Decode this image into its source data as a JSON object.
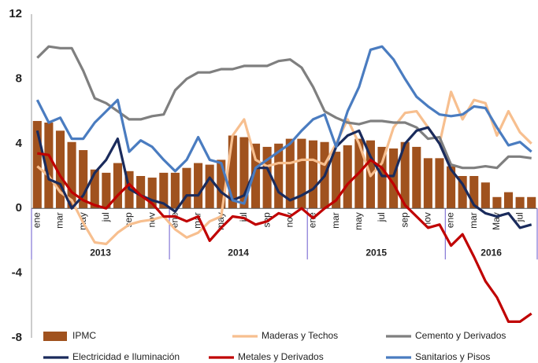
{
  "chart_data": {
    "type": "bar-line",
    "categories": [
      "ene",
      null,
      "mar",
      null,
      "may",
      null,
      "jul",
      null,
      "sep",
      null,
      "nov",
      null,
      "ene",
      null,
      "mar",
      null,
      "may",
      null,
      "jul",
      null,
      "sep",
      null,
      "nov",
      null,
      "ene",
      null,
      "mar",
      null,
      "may",
      null,
      "jul",
      null,
      "sep",
      null,
      "nov",
      null,
      "ene",
      null,
      "mar",
      null,
      "May",
      null,
      "jul",
      null
    ],
    "years": [
      "2013",
      "2014",
      "2015",
      "2016"
    ],
    "ylim": [
      -8,
      12
    ],
    "yticks": [
      -8,
      -4,
      0,
      4,
      8,
      12
    ],
    "series": [
      {
        "name": "IPMC",
        "kind": "bar",
        "color": "#a0521e",
        "values": [
          5.4,
          5.3,
          4.8,
          4.1,
          3.6,
          2.4,
          2.2,
          2.8,
          2.3,
          2.0,
          1.9,
          2.2,
          2.2,
          2.5,
          2.8,
          2.7,
          3.0,
          4.5,
          4.4,
          4.0,
          3.8,
          4.0,
          4.3,
          4.3,
          4.2,
          4.1,
          3.5,
          3.9,
          4.3,
          4.2,
          3.8,
          3.7,
          4.1,
          3.8,
          3.1,
          3.1,
          2.6,
          2.0,
          2.0,
          1.6,
          0.7,
          1.0,
          0.7,
          0.7
        ]
      },
      {
        "name": "Maderas y Techos",
        "kind": "line",
        "color": "#f7bf8f",
        "values": [
          2.6,
          2.0,
          1.0,
          0.5,
          -0.9,
          -2.1,
          -2.2,
          -1.5,
          -1.0,
          -0.8,
          -0.7,
          -0.5,
          -1.3,
          -1.8,
          -1.5,
          -0.8,
          -0.5,
          4.5,
          5.5,
          3.0,
          2.6,
          2.8,
          2.8,
          3.0,
          3.0,
          2.7,
          4.0,
          5.5,
          4.0,
          2.0,
          2.8,
          5.0,
          5.9,
          6.0,
          5.0,
          4.0,
          7.2,
          5.5,
          6.7,
          6.5,
          4.5,
          6.0,
          4.7,
          4.0
        ]
      },
      {
        "name": "Cemento y Derivados",
        "kind": "line",
        "color": "#7f7f7f",
        "values": [
          9.3,
          10.0,
          9.9,
          9.9,
          8.5,
          6.8,
          6.5,
          6.0,
          5.5,
          5.5,
          5.7,
          5.8,
          7.3,
          8.0,
          8.4,
          8.4,
          8.6,
          8.6,
          8.8,
          8.8,
          8.8,
          9.1,
          9.2,
          8.7,
          7.5,
          6.0,
          5.6,
          5.3,
          5.2,
          5.4,
          5.4,
          5.3,
          5.3,
          5.0,
          4.3,
          4.4,
          2.7,
          2.5,
          2.5,
          2.6,
          2.5,
          3.2,
          3.2,
          3.1
        ]
      },
      {
        "name": "Electricidad e Iluminación",
        "kind": "line",
        "color": "#1a2b5c",
        "values": [
          4.8,
          1.8,
          1.5,
          0.0,
          0.8,
          2.2,
          3.0,
          4.3,
          1.2,
          0.8,
          0.5,
          0.3,
          -0.2,
          0.8,
          0.8,
          1.9,
          1.0,
          0.5,
          0.8,
          2.5,
          2.5,
          1.0,
          0.5,
          0.8,
          1.2,
          2.0,
          3.8,
          4.5,
          4.8,
          3.2,
          2.0,
          2.0,
          4.0,
          4.8,
          5.0,
          4.0,
          2.4,
          1.5,
          0.2,
          -0.3,
          -0.5,
          -0.3,
          -1.2,
          -1.0
        ]
      },
      {
        "name": "Metales y Derivados",
        "kind": "line",
        "color": "#c00000",
        "values": [
          3.4,
          3.3,
          2.0,
          1.0,
          0.5,
          0.2,
          0.0,
          0.8,
          1.5,
          0.8,
          0.3,
          -0.5,
          -0.5,
          -0.8,
          -0.5,
          -2.0,
          -1.2,
          -0.5,
          -0.6,
          -1.0,
          -0.8,
          -0.3,
          -0.5,
          0.0,
          -0.6,
          0.0,
          0.5,
          1.5,
          2.2,
          3.0,
          2.5,
          1.5,
          0.2,
          -0.5,
          -1.2,
          -1.0,
          -2.3,
          -1.6,
          -3.0,
          -4.5,
          -5.5,
          -7.0,
          -7.0,
          -6.5
        ]
      },
      {
        "name": "Sanitarios y Pisos",
        "kind": "line",
        "color": "#4a7cc0",
        "values": [
          6.7,
          5.3,
          5.6,
          4.3,
          4.3,
          5.3,
          6.0,
          6.7,
          3.5,
          4.2,
          3.8,
          3.0,
          2.3,
          3.0,
          4.4,
          3.0,
          2.8,
          0.5,
          0.3,
          2.5,
          3.0,
          3.5,
          4.0,
          4.8,
          5.5,
          5.8,
          3.8,
          6.0,
          7.5,
          9.8,
          10.0,
          9.2,
          8.0,
          6.9,
          6.3,
          5.8,
          5.7,
          5.8,
          6.3,
          6.2,
          5.0,
          3.9,
          4.1,
          3.5
        ]
      }
    ]
  }
}
